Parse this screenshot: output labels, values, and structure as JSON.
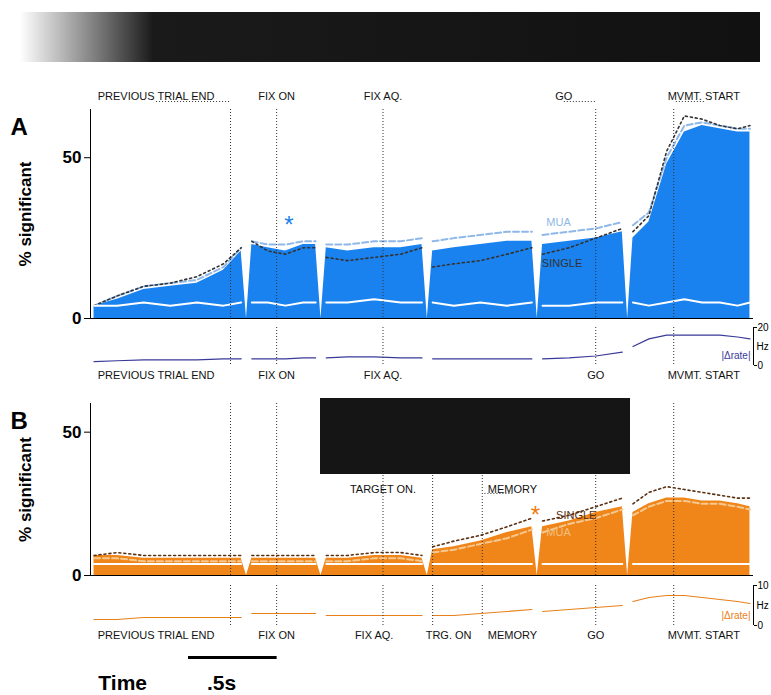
{
  "chart_data": [
    {
      "type": "area",
      "panel": "A",
      "ylabel": "% significant",
      "xlim": [
        0,
        3.74
      ],
      "ylim": [
        0,
        65
      ],
      "yticks": [
        0,
        50
      ],
      "tick_labels": "y",
      "x": [
        0.02,
        0.15,
        0.3,
        0.45,
        0.6,
        0.75,
        0.85,
        0.88,
        0.91,
        1.0,
        1.1,
        1.2,
        1.27,
        1.3,
        1.33,
        1.45,
        1.6,
        1.75,
        1.87,
        1.9,
        1.93,
        2.05,
        2.2,
        2.35,
        2.49,
        2.52,
        2.55,
        2.7,
        2.85,
        3.0,
        3.03,
        3.06,
        3.15,
        3.25,
        3.35,
        3.45,
        3.55,
        3.65,
        3.72
      ],
      "series": [
        {
          "type": "area",
          "color": "#1a82ee",
          "values": [
            4,
            6,
            9,
            10,
            11,
            15,
            21,
            null,
            23,
            22,
            21,
            23,
            23,
            null,
            22,
            21,
            22,
            22,
            23,
            null,
            21,
            22,
            23,
            24,
            24,
            null,
            23,
            24,
            25,
            27,
            null,
            25,
            30,
            48,
            58,
            60,
            59,
            58,
            58
          ]
        },
        {
          "name": "MUA",
          "type": "line",
          "color": "#8fb8e8",
          "line_style": "dashed",
          "values": [
            4,
            7,
            10,
            11,
            12,
            16,
            22,
            null,
            24,
            23,
            23,
            24,
            24,
            null,
            23,
            23,
            24,
            24,
            25,
            null,
            24,
            25,
            26,
            27,
            27,
            null,
            26,
            27,
            28,
            30,
            null,
            29,
            33,
            50,
            60,
            61,
            60,
            59,
            59
          ]
        },
        {
          "name": "SINGLE",
          "type": "line",
          "color": "#333333",
          "line_style": "dotted",
          "values": [
            4,
            7,
            10,
            11,
            13,
            17,
            22,
            null,
            24,
            21,
            20,
            22,
            22,
            null,
            19,
            18,
            19,
            20,
            22,
            null,
            16,
            17,
            18,
            20,
            22,
            null,
            20,
            22,
            25,
            28,
            null,
            27,
            32,
            52,
            63,
            62,
            60,
            59,
            60
          ]
        },
        {
          "type": "line",
          "color": "#ffffff",
          "line_style": "solid",
          "values": [
            4,
            4,
            5,
            4,
            5,
            4,
            5,
            null,
            5,
            5,
            4,
            5,
            5,
            null,
            5,
            5,
            6,
            5,
            5,
            null,
            5,
            4,
            5,
            4,
            5,
            null,
            4,
            4,
            5,
            5,
            null,
            5,
            4,
            5,
            6,
            5,
            5,
            4,
            5
          ]
        }
      ],
      "annotations": [
        {
          "text": "*",
          "x": 1.12,
          "y": 29,
          "color": "#1a82ee"
        },
        {
          "text": "MUA",
          "x": 2.64,
          "y": 30,
          "color": "#8fb8e8"
        },
        {
          "text": "SINGLE",
          "x": 2.66,
          "y": 17,
          "color": "#333333"
        }
      ],
      "events": [
        {
          "label": "PREVIOUS TRIAL END",
          "x": 0.79,
          "label_x": 0.37
        },
        {
          "label": "FIX ON",
          "x": 1.05,
          "label_x": 1.05
        },
        {
          "label": "FIX AQ.",
          "x": 1.65,
          "label_x": 1.65
        },
        {
          "label": "GO",
          "x": 2.85,
          "label_x": 2.67
        },
        {
          "label": "MVMT. START",
          "x": 3.29,
          "label_x": 3.46
        }
      ]
    },
    {
      "type": "line",
      "ylabel": "Hz",
      "xlim": [
        0,
        3.74
      ],
      "ylim": [
        0,
        20
      ],
      "yticks": [
        0,
        20
      ],
      "tick_labels": "y",
      "x": [
        0.02,
        0.15,
        0.3,
        0.45,
        0.6,
        0.75,
        0.85,
        0.88,
        0.91,
        1.0,
        1.1,
        1.2,
        1.27,
        1.3,
        1.33,
        1.45,
        1.6,
        1.75,
        1.87,
        1.9,
        1.93,
        2.05,
        2.2,
        2.35,
        2.49,
        2.52,
        2.55,
        2.7,
        2.85,
        3.0,
        3.03,
        3.06,
        3.15,
        3.25,
        3.35,
        3.45,
        3.55,
        3.65,
        3.72
      ],
      "series": [
        {
          "name": "|Δrate|",
          "color": "#3a3a9a",
          "values": [
            2,
            2.5,
            3,
            3,
            3,
            3.5,
            3.5,
            null,
            3.5,
            3.5,
            3.5,
            4,
            4,
            null,
            4,
            4.5,
            4.5,
            4,
            4,
            null,
            3.5,
            3.5,
            3.5,
            3.5,
            3.5,
            null,
            3.5,
            4,
            5,
            7,
            null,
            10,
            14,
            16,
            16,
            16,
            16,
            15,
            14
          ]
        }
      ],
      "events": [
        {
          "label": "PREVIOUS TRIAL END",
          "x": 0.79,
          "label_x": 0.37
        },
        {
          "label": "FIX ON",
          "x": 1.05,
          "label_x": 1.05
        },
        {
          "label": "FIX AQ.",
          "x": 1.65,
          "label_x": 1.65
        },
        {
          "label": "GO",
          "x": 2.85,
          "label_x": 2.85
        },
        {
          "label": "MVMT. START",
          "x": 3.29,
          "label_x": 3.46
        }
      ]
    },
    {
      "type": "area",
      "panel": "B",
      "ylabel": "% significant",
      "xlim": [
        0,
        3.74
      ],
      "ylim": [
        0,
        60
      ],
      "yticks": [
        0,
        50
      ],
      "tick_labels": "y",
      "x": [
        0.02,
        0.15,
        0.3,
        0.45,
        0.6,
        0.75,
        0.85,
        0.88,
        0.91,
        1.0,
        1.1,
        1.2,
        1.27,
        1.3,
        1.33,
        1.45,
        1.6,
        1.75,
        1.87,
        1.9,
        1.93,
        2.05,
        2.2,
        2.35,
        2.49,
        2.52,
        2.55,
        2.7,
        2.85,
        3.0,
        3.03,
        3.06,
        3.15,
        3.25,
        3.35,
        3.45,
        3.55,
        3.65,
        3.72
      ],
      "series": [
        {
          "type": "area",
          "color": "#f0851a",
          "values": [
            7,
            7,
            6,
            6,
            6,
            6,
            6,
            null,
            6,
            6,
            6,
            6,
            6,
            null,
            6,
            6,
            7,
            7,
            6,
            null,
            9,
            10,
            12,
            15,
            17,
            null,
            17,
            19,
            22,
            24,
            null,
            22,
            25,
            27,
            27,
            26,
            26,
            25,
            24
          ]
        },
        {
          "name": "SINGLE",
          "type": "line",
          "color": "#5a3010",
          "line_style": "dotted",
          "values": [
            7,
            8,
            7,
            7,
            7,
            7,
            7,
            null,
            7,
            7,
            7,
            7,
            7,
            null,
            7,
            7,
            8,
            8,
            7,
            null,
            10,
            12,
            14,
            17,
            20,
            null,
            19,
            21,
            24,
            27,
            null,
            25,
            29,
            31,
            30,
            29,
            28,
            27,
            27
          ]
        },
        {
          "name": "MUA",
          "type": "line",
          "color": "#f5c88f",
          "line_style": "dashed",
          "values": [
            6,
            6,
            5,
            5,
            5,
            5,
            5,
            null,
            5,
            5,
            5,
            5,
            5,
            null,
            5,
            5,
            6,
            6,
            5,
            null,
            8,
            9,
            11,
            13,
            16,
            null,
            15,
            18,
            20,
            23,
            null,
            21,
            24,
            26,
            26,
            25,
            25,
            24,
            23
          ]
        },
        {
          "type": "line",
          "color": "#ffffff",
          "line_style": "solid",
          "values": [
            4,
            4,
            4,
            4,
            4,
            4,
            4,
            null,
            4,
            4,
            4,
            4,
            4,
            null,
            4,
            4,
            4,
            4,
            4,
            null,
            4,
            4,
            4,
            4,
            4,
            null,
            4,
            4,
            4,
            4,
            null,
            4,
            4,
            4,
            4,
            4,
            4,
            4,
            4
          ]
        }
      ],
      "annotations": [
        {
          "text": "*",
          "x": 2.51,
          "y": 21,
          "color": "#f07a10"
        },
        {
          "text": "SINGLE",
          "x": 2.74,
          "y": 21,
          "color": "#5a3010"
        },
        {
          "text": "MUA",
          "x": 2.64,
          "y": 15,
          "color": "#f0c080"
        }
      ],
      "events": [
        {
          "x": 0.79
        },
        {
          "x": 1.05
        },
        {
          "x": 1.65
        },
        {
          "x": 1.93
        },
        {
          "x": 2.21
        },
        {
          "x": 2.85
        },
        {
          "x": 3.29
        }
      ],
      "top_labels": [
        {
          "label": "TARGET ON.",
          "x": 1.65,
          "label_x": 1.65
        },
        {
          "label": "MEMORY",
          "x": 2.21,
          "label_x": 2.38
        }
      ]
    },
    {
      "type": "line",
      "ylabel": "Hz",
      "xlim": [
        0,
        3.74
      ],
      "ylim": [
        0,
        10
      ],
      "yticks": [
        0,
        10
      ],
      "tick_labels": "y",
      "x": [
        0.02,
        0.15,
        0.3,
        0.45,
        0.6,
        0.75,
        0.85,
        0.88,
        0.91,
        1.0,
        1.1,
        1.2,
        1.27,
        1.3,
        1.33,
        1.45,
        1.6,
        1.75,
        1.87,
        1.9,
        1.93,
        2.05,
        2.2,
        2.35,
        2.49,
        2.52,
        2.55,
        2.7,
        2.85,
        3.0,
        3.03,
        3.06,
        3.15,
        3.25,
        3.35,
        3.45,
        3.55,
        3.65,
        3.72
      ],
      "series": [
        {
          "name": "|Δrate|",
          "color": "#e8801a",
          "values": [
            1.5,
            1.5,
            2,
            2,
            2,
            2,
            2,
            null,
            3,
            3,
            3,
            3,
            3,
            null,
            2.5,
            2.5,
            2.5,
            2.5,
            2.5,
            null,
            2.5,
            2.5,
            3,
            3.5,
            4,
            null,
            3.5,
            4,
            4.5,
            5,
            null,
            6,
            7,
            7.5,
            7.5,
            7,
            6.5,
            6,
            5.5
          ]
        }
      ],
      "events": [
        {
          "label": "PREVIOUS TRIAL END",
          "x": 0.79,
          "label_x": 0.37
        },
        {
          "label": "FIX ON",
          "x": 1.05,
          "label_x": 1.05
        },
        {
          "label": "FIX AQ.",
          "x": 1.65,
          "label_x": 1.6
        },
        {
          "label": "TRG. ON",
          "x": 1.93,
          "label_x": 2.02
        },
        {
          "label": "MEMORY",
          "x": 2.21,
          "label_x": 2.38
        },
        {
          "label": "GO",
          "x": 2.85,
          "label_x": 2.85
        },
        {
          "label": "MVMT. START",
          "x": 3.29,
          "label_x": 3.46
        }
      ],
      "scale_bar": {
        "title": "Time",
        "label": ".5s",
        "x1": 0.55,
        "x2": 1.05
      }
    }
  ]
}
